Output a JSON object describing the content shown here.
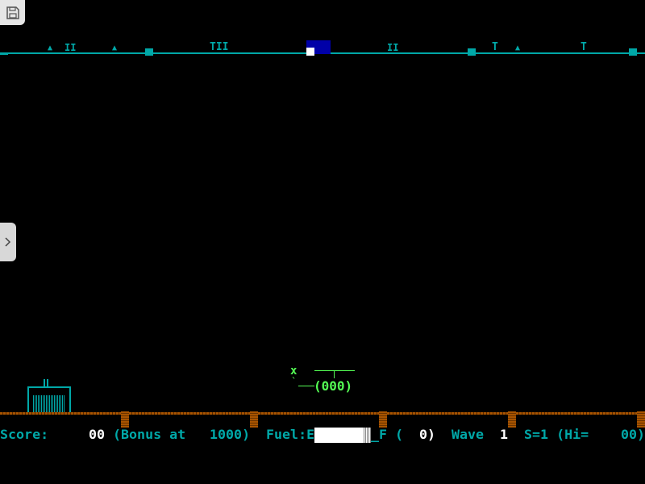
{
  "overlay": {
    "save_icon": "floppy-disk-icon",
    "side_tab_icon": "chevron-right-icon"
  },
  "hud": {
    "score_label": "Score:",
    "score_value": "00",
    "bonus_label": "(Bonus at",
    "bonus_value": "1000)",
    "fuel_label": "Fuel:E",
    "fuel_full_label": "_F",
    "fuel_paren_open": "(",
    "fuel_count": "0)",
    "fuel_level_percent": 90,
    "wave_label": "Wave",
    "wave_value": "1",
    "ships_hi_label": "S=1 (Hi=",
    "hi_value": "00)"
  },
  "helicopter": {
    "marker": "x",
    "tick": "`",
    "body": "(000)"
  },
  "colors": {
    "cyan": "#00a8a8",
    "white": "#ffffff",
    "green": "#54fc54",
    "ground": "#a85400",
    "radar_view": "#0000a8"
  }
}
